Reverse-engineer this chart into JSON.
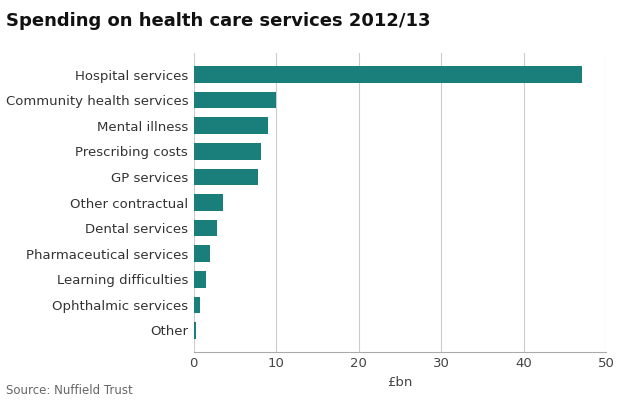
{
  "title": "Spending on health care services 2012/13",
  "categories": [
    "Other",
    "Ophthalmic services",
    "Learning difficulties",
    "Pharmaceutical services",
    "Dental services",
    "Other contractual",
    "GP services",
    "Prescribing costs",
    "Mental illness",
    "Community health services",
    "Hospital services"
  ],
  "values": [
    0.3,
    0.8,
    1.5,
    2.0,
    2.8,
    3.5,
    7.8,
    8.2,
    9.0,
    10.0,
    47.0
  ],
  "bar_color": "#1a7f7a",
  "xlabel": "£bn",
  "source": "Source: Nuffield Trust",
  "xlim": [
    0,
    50
  ],
  "xticks": [
    0,
    10,
    20,
    30,
    40,
    50
  ],
  "background_color": "#ffffff",
  "title_fontsize": 13,
  "label_fontsize": 9.5,
  "tick_fontsize": 9.5,
  "source_fontsize": 8.5,
  "bar_height": 0.65
}
